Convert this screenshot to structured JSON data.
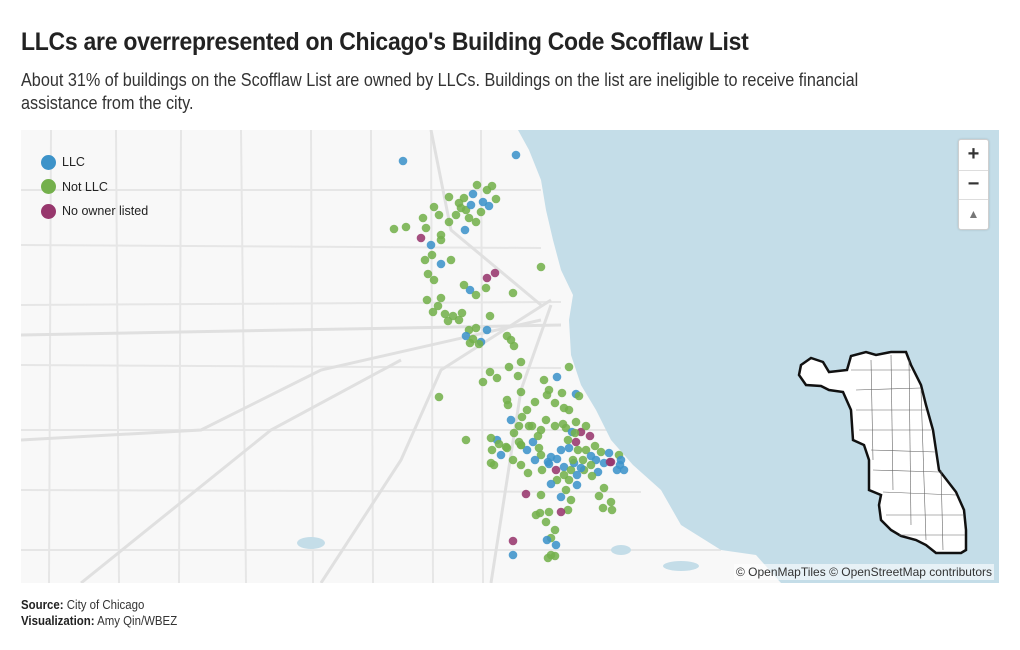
{
  "header": {
    "title": "LLCs are overrepresented on Chicago's Building Code Scofflaw List",
    "subtitle": "About 31% of buildings on the Scofflaw List are owned by LLCs. Buildings on the list are ineligible to receive financial assistance from the city."
  },
  "legend": {
    "items": [
      {
        "label": "LLC",
        "color": "#3d93c9"
      },
      {
        "label": "Not LLC",
        "color": "#74b04c"
      },
      {
        "label": "No owner listed",
        "color": "#97376d"
      }
    ]
  },
  "zoom": {
    "in_label": "+",
    "out_label": "−",
    "reset_label": "▲"
  },
  "attribution": "© OpenMapTiles © OpenStreetMap contributors",
  "footer": {
    "source_label": "Source:",
    "source_value": "City of Chicago",
    "viz_label": "Visualization:",
    "viz_value": "Amy Qin/WBEZ"
  },
  "colors": {
    "water": "#c4dde8",
    "land": "#f8f8f8",
    "road": "#e4e4e4"
  }
}
